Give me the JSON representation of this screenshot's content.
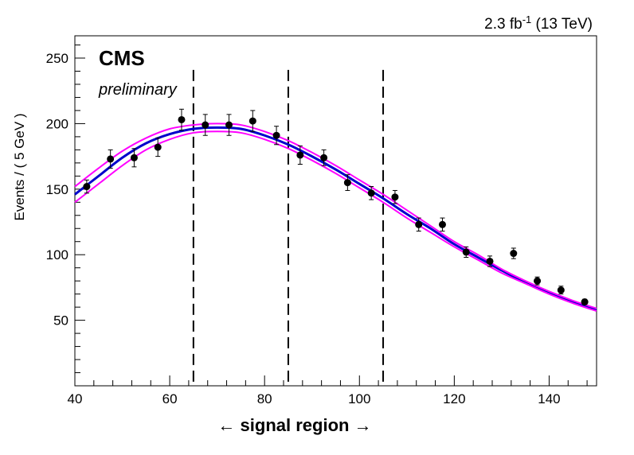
{
  "header": {
    "lumi_prefix": "2.3 fb",
    "lumi_exponent": "-1",
    "lumi_suffix": " (13 TeV)",
    "experiment": "CMS",
    "status": "preliminary"
  },
  "chart_data": {
    "type": "scatter",
    "xlabel": "← signal region →",
    "ylabel": "Events / ( 5 GeV )",
    "xlim": [
      40,
      150
    ],
    "ylim": [
      0,
      267
    ],
    "x_ticks": [
      40,
      60,
      80,
      100,
      120,
      140
    ],
    "y_ticks": [
      50,
      100,
      150,
      200,
      250
    ],
    "grid": false,
    "vertical_lines": [
      65,
      85,
      105
    ],
    "series": [
      {
        "kind": "data-points",
        "color": "#000000",
        "x": [
          42.5,
          47.5,
          52.5,
          57.5,
          62.5,
          67.5,
          72.5,
          77.5,
          82.5,
          87.5,
          92.5,
          97.5,
          102.5,
          107.5,
          112.5,
          117.5,
          122.5,
          127.5,
          132.5,
          137.5,
          142.5,
          147.5
        ],
        "y": [
          152,
          173,
          174,
          182,
          203,
          199,
          199,
          202,
          191,
          176,
          174,
          155,
          147,
          144,
          123,
          123,
          102,
          95,
          101,
          80,
          73,
          64
        ],
        "yerr": [
          5,
          7,
          7,
          7,
          8,
          8,
          8,
          8,
          7,
          7,
          6,
          6,
          5,
          5,
          5,
          5,
          4,
          4,
          4,
          3,
          3,
          2
        ]
      },
      {
        "kind": "fit-curve",
        "color": "#0000cc",
        "x": [
          40,
          45,
          50,
          55,
          60,
          65,
          70,
          75,
          80,
          85,
          90,
          95,
          100,
          105,
          110,
          115,
          120,
          125,
          130,
          135,
          140,
          145,
          150
        ],
        "y": [
          146,
          160,
          174,
          185,
          192,
          196,
          197,
          196,
          191,
          184,
          175,
          165,
          154,
          143,
          131,
          120,
          108,
          98,
          88,
          79,
          71,
          64,
          58
        ]
      },
      {
        "kind": "fit-curve-upper",
        "color": "#ff00ff",
        "x": [
          40,
          45,
          50,
          55,
          60,
          65,
          70,
          75,
          80,
          85,
          90,
          95,
          100,
          105,
          110,
          115,
          120,
          125,
          130,
          135,
          140,
          145,
          150
        ],
        "y": [
          152,
          166,
          179,
          189,
          196,
          199,
          200,
          199,
          194,
          187,
          178,
          168,
          157,
          146,
          134,
          122,
          110,
          100,
          89,
          80,
          72,
          65,
          59
        ]
      },
      {
        "kind": "fit-curve-lower",
        "color": "#ff00ff",
        "x": [
          40,
          45,
          50,
          55,
          60,
          65,
          70,
          75,
          80,
          85,
          90,
          95,
          100,
          105,
          110,
          115,
          120,
          125,
          130,
          135,
          140,
          145,
          150
        ],
        "y": [
          140,
          154,
          168,
          180,
          188,
          193,
          194,
          193,
          188,
          181,
          172,
          162,
          151,
          140,
          128,
          117,
          106,
          96,
          86,
          78,
          70,
          63,
          57
        ]
      }
    ]
  }
}
